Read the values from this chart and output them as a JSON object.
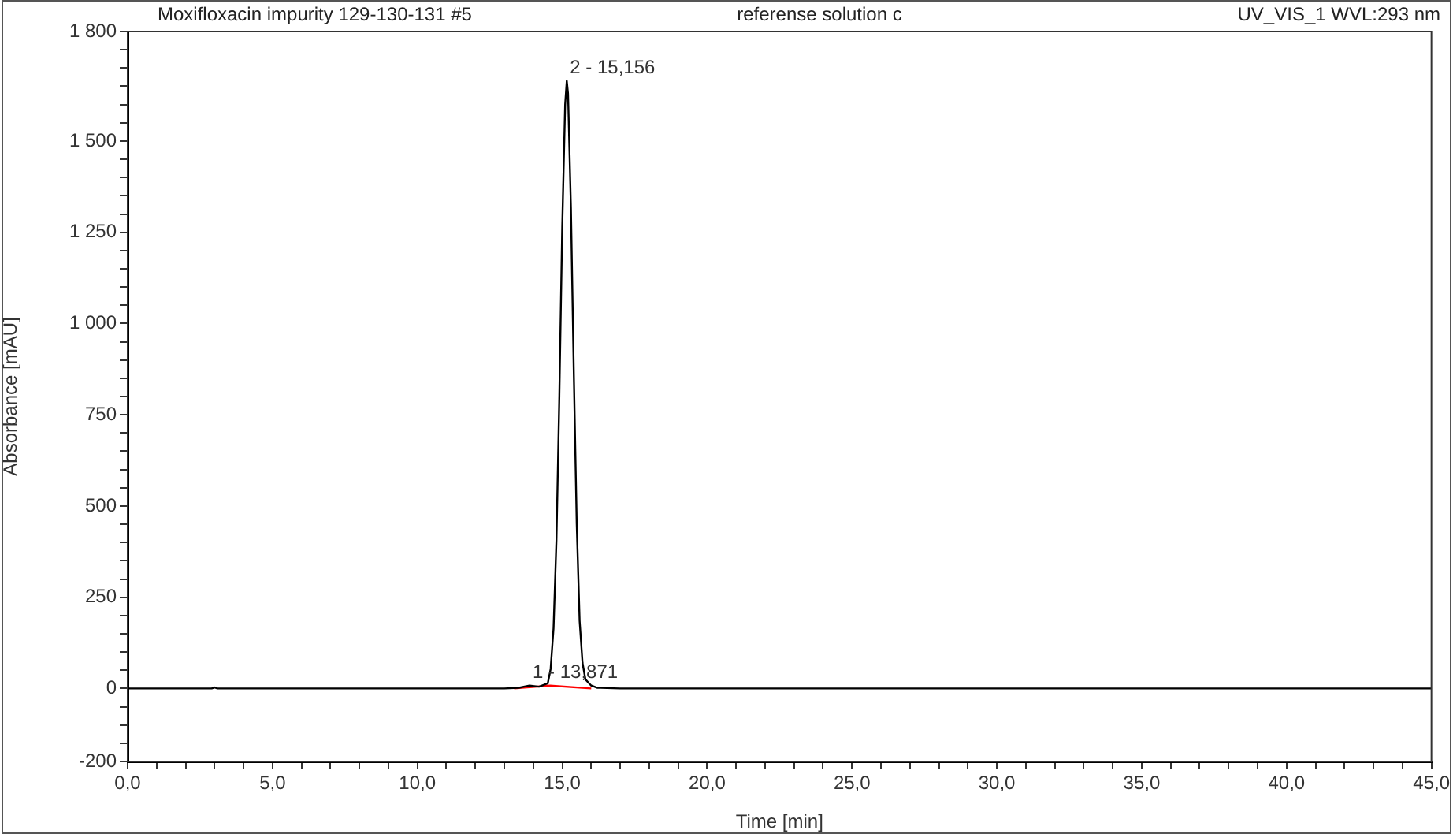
{
  "chart_data": {
    "type": "line",
    "title": "Moxifloxacin impurity 129-130-131 #5",
    "subtitle": "referense solution c",
    "annotations": [
      "UV_VIS_1 WVL:293 nm",
      {
        "text": "2 - 15,156",
        "x": 15.156,
        "y": 1665
      },
      {
        "text": "1 - 13,871",
        "x": 13.871,
        "y": 8
      }
    ],
    "xlabel": "Time [min]",
    "ylabel": "Absorbance [mAU]",
    "series": [
      {
        "color": "#000000",
        "x": [
          0,
          2.9,
          3.0,
          3.1,
          4.0,
          10.0,
          13.0,
          13.5,
          13.871,
          14.2,
          14.5,
          14.6,
          14.7,
          14.8,
          14.9,
          15.0,
          15.1,
          15.156,
          15.2,
          15.3,
          15.4,
          15.5,
          15.6,
          15.7,
          15.8,
          16.0,
          16.2,
          17.0,
          45.0
        ],
        "values": [
          0,
          0,
          3,
          0,
          0,
          0,
          0,
          2,
          8,
          5,
          14,
          54,
          165,
          407,
          803,
          1267,
          1600,
          1665,
          1630,
          1315,
          860,
          450,
          185,
          70,
          25,
          8,
          2,
          0,
          0
        ]
      },
      {
        "color": "#ff0000",
        "x": [
          13.34,
          14.58,
          16.0
        ],
        "values": [
          0,
          8,
          0
        ]
      }
    ],
    "xlim": [
      0,
      45
    ],
    "ylim": [
      -200,
      1800
    ],
    "xticks": [
      {
        "value": 0,
        "label": "0,0"
      },
      {
        "value": 1,
        "label": null
      },
      {
        "value": 2,
        "label": null
      },
      {
        "value": 3,
        "label": null
      },
      {
        "value": 4,
        "label": null
      },
      {
        "value": 5,
        "label": "5,0"
      },
      {
        "value": 6,
        "label": null
      },
      {
        "value": 7,
        "label": null
      },
      {
        "value": 8,
        "label": null
      },
      {
        "value": 9,
        "label": null
      },
      {
        "value": 10,
        "label": "10,0"
      },
      {
        "value": 11,
        "label": null
      },
      {
        "value": 12,
        "label": null
      },
      {
        "value": 13,
        "label": null
      },
      {
        "value": 14,
        "label": null
      },
      {
        "value": 15,
        "label": "15,0"
      },
      {
        "value": 16,
        "label": null
      },
      {
        "value": 17,
        "label": null
      },
      {
        "value": 18,
        "label": null
      },
      {
        "value": 19,
        "label": null
      },
      {
        "value": 20,
        "label": "20,0"
      },
      {
        "value": 21,
        "label": null
      },
      {
        "value": 22,
        "label": null
      },
      {
        "value": 23,
        "label": null
      },
      {
        "value": 24,
        "label": null
      },
      {
        "value": 25,
        "label": "25,0"
      },
      {
        "value": 26,
        "label": null
      },
      {
        "value": 27,
        "label": null
      },
      {
        "value": 28,
        "label": null
      },
      {
        "value": 29,
        "label": null
      },
      {
        "value": 30,
        "label": "30,0"
      },
      {
        "value": 31,
        "label": null
      },
      {
        "value": 32,
        "label": null
      },
      {
        "value": 33,
        "label": null
      },
      {
        "value": 34,
        "label": null
      },
      {
        "value": 35,
        "label": "35,0"
      },
      {
        "value": 36,
        "label": null
      },
      {
        "value": 37,
        "label": null
      },
      {
        "value": 38,
        "label": null
      },
      {
        "value": 39,
        "label": null
      },
      {
        "value": 40,
        "label": "40,0"
      },
      {
        "value": 41,
        "label": null
      },
      {
        "value": 42,
        "label": null
      },
      {
        "value": 43,
        "label": null
      },
      {
        "value": 44,
        "label": null
      },
      {
        "value": 45,
        "label": "45,0"
      }
    ],
    "yticks": [
      -200,
      {
        "value": -150,
        "label": null
      },
      {
        "value": -100,
        "label": null
      },
      {
        "value": -50,
        "label": null
      },
      0,
      {
        "value": 50,
        "label": null
      },
      {
        "value": 100,
        "label": null
      },
      {
        "value": 150,
        "label": null
      },
      {
        "value": 200,
        "label": null
      },
      250,
      {
        "value": 300,
        "label": null
      },
      {
        "value": 350,
        "label": null
      },
      {
        "value": 400,
        "label": null
      },
      {
        "value": 450,
        "label": null
      },
      500,
      {
        "value": 550,
        "label": null
      },
      {
        "value": 600,
        "label": null
      },
      {
        "value": 650,
        "label": null
      },
      {
        "value": 700,
        "label": null
      },
      750,
      {
        "value": 800,
        "label": null
      },
      {
        "value": 850,
        "label": null
      },
      {
        "value": 900,
        "label": null
      },
      {
        "value": 950,
        "label": null
      },
      {
        "value": 1000,
        "label": "1 000"
      },
      {
        "value": 1050,
        "label": null
      },
      {
        "value": 1100,
        "label": null
      },
      {
        "value": 1150,
        "label": null
      },
      {
        "value": 1200,
        "label": null
      },
      {
        "value": 1250,
        "label": "1 250"
      },
      {
        "value": 1300,
        "label": null
      },
      {
        "value": 1350,
        "label": null
      },
      {
        "value": 1400,
        "label": null
      },
      {
        "value": 1450,
        "label": null
      },
      {
        "value": 1500,
        "label": "1 500"
      },
      {
        "value": 1550,
        "label": null
      },
      {
        "value": 1600,
        "label": null
      },
      {
        "value": 1650,
        "label": null
      },
      {
        "value": 1700,
        "label": null
      },
      {
        "value": 1750,
        "label": null
      },
      {
        "value": 1800,
        "label": "1 800"
      }
    ],
    "grid": false,
    "legend": false,
    "marker": "none",
    "line_style": "solid"
  }
}
